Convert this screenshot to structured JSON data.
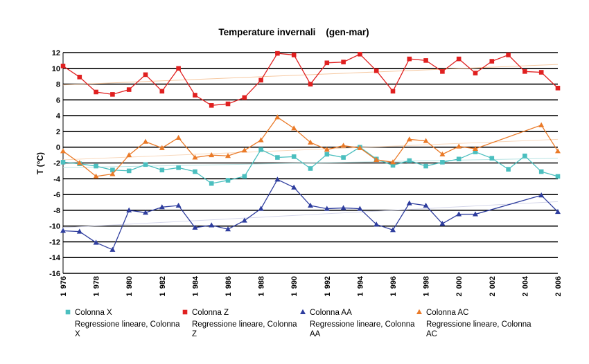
{
  "chart_data": {
    "type": "line",
    "title": "Temperature invernali    (gen-mar)",
    "ylabel": "T (°C)",
    "xlabel": "",
    "ylim": [
      -16,
      12
    ],
    "yticks": [
      12,
      10,
      8,
      6,
      4,
      2,
      0,
      -2,
      -4,
      -6,
      -8,
      -10,
      -12,
      -14,
      -16
    ],
    "xlim": [
      1976,
      2006
    ],
    "xtick_labels": [
      {
        "year": 1976,
        "parts": [
          "1",
          "976"
        ]
      },
      {
        "year": 1978,
        "parts": [
          "1",
          "978"
        ]
      },
      {
        "year": 1980,
        "parts": [
          "1",
          "980"
        ]
      },
      {
        "year": 1982,
        "parts": [
          "1",
          "982"
        ]
      },
      {
        "year": 1984,
        "parts": [
          "1",
          "984"
        ]
      },
      {
        "year": 1986,
        "parts": [
          "1",
          "986"
        ]
      },
      {
        "year": 1988,
        "parts": [
          "1",
          "988"
        ]
      },
      {
        "year": 1990,
        "parts": [
          "1",
          "990"
        ]
      },
      {
        "year": 1992,
        "parts": [
          "1",
          "992"
        ]
      },
      {
        "year": 1994,
        "parts": [
          "1",
          "994"
        ]
      },
      {
        "year": 1996,
        "parts": [
          "1",
          "996"
        ]
      },
      {
        "year": 1998,
        "parts": [
          "1",
          "998"
        ]
      },
      {
        "year": 2000,
        "parts": [
          "2",
          "000"
        ]
      },
      {
        "year": 2002,
        "parts": [
          "2",
          "002"
        ]
      },
      {
        "year": 2004,
        "parts": [
          "2",
          "004"
        ]
      },
      {
        "year": 2006,
        "parts": [
          "2",
          "006"
        ]
      }
    ],
    "grid": true,
    "legend_position": "bottom",
    "series": [
      {
        "name": "Colonna X",
        "marker": "square",
        "color": "#4bbfbf",
        "x": [
          1976,
          1977,
          1978,
          1979,
          1980,
          1981,
          1982,
          1983,
          1984,
          1985,
          1986,
          1987,
          1988,
          1989,
          1990,
          1991,
          1992,
          1993,
          1994,
          1995,
          1996,
          1997,
          1998,
          1999,
          2000,
          2001,
          2002,
          2003,
          2004,
          2005,
          2006
        ],
        "values": [
          -1.9,
          -2.1,
          -2.4,
          -2.9,
          -3.0,
          -2.2,
          -2.9,
          -2.6,
          -3.1,
          -4.6,
          -4.2,
          -3.7,
          -0.3,
          -1.3,
          -1.2,
          -2.7,
          -0.9,
          -1.3,
          0.0,
          -1.5,
          -2.3,
          -1.7,
          -2.4,
          -1.9,
          -1.5,
          -0.6,
          -1.4,
          -2.8,
          -1.1,
          -3.1,
          -3.7
        ]
      },
      {
        "name": "Colonna Z",
        "marker": "square",
        "color": "#e02020",
        "x": [
          1976,
          1977,
          1978,
          1979,
          1980,
          1981,
          1982,
          1983,
          1984,
          1985,
          1986,
          1987,
          1988,
          1989,
          1990,
          1991,
          1992,
          1993,
          1994,
          1995,
          1996,
          1997,
          1998,
          1999,
          2000,
          2001,
          2002,
          2003,
          2004,
          2005,
          2006
        ],
        "values": [
          10.3,
          8.9,
          7.0,
          6.7,
          7.3,
          9.2,
          7.1,
          10.0,
          6.6,
          5.3,
          5.5,
          6.3,
          8.5,
          11.9,
          11.7,
          8.0,
          10.7,
          10.8,
          11.8,
          9.7,
          7.1,
          11.2,
          11.0,
          9.6,
          11.2,
          9.4,
          10.9,
          11.7,
          9.6,
          9.5,
          7.5
        ]
      },
      {
        "name": "Colonna AA",
        "marker": "triangle",
        "color": "#2e3d9e",
        "x": [
          1976,
          1977,
          1978,
          1979,
          1980,
          1981,
          1982,
          1983,
          1984,
          1985,
          1986,
          1987,
          1988,
          1989,
          1990,
          1991,
          1992,
          1993,
          1994,
          1995,
          1996,
          1997,
          1998,
          1999,
          2000,
          2001,
          2005,
          2006
        ],
        "values": [
          -10.6,
          -10.7,
          -12.1,
          -13.0,
          -8.0,
          -8.3,
          -7.6,
          -7.4,
          -10.2,
          -9.9,
          -10.4,
          -9.3,
          -7.8,
          -4.1,
          -5.1,
          -7.4,
          -7.8,
          -7.7,
          -7.8,
          -9.8,
          -10.5,
          -7.1,
          -7.4,
          -9.7,
          -8.5,
          -8.5,
          -6.1,
          -8.2
        ]
      },
      {
        "name": "Colonna AC",
        "marker": "triangle",
        "color": "#ea7a28",
        "x": [
          1976,
          1977,
          1978,
          1979,
          1980,
          1981,
          1982,
          1983,
          1984,
          1985,
          1986,
          1987,
          1988,
          1989,
          1990,
          1991,
          1992,
          1993,
          1994,
          1995,
          1996,
          1997,
          1998,
          1999,
          2000,
          2001,
          2005,
          2006
        ],
        "values": [
          -0.5,
          -2.0,
          -3.7,
          -3.4,
          -1.0,
          0.7,
          -0.1,
          1.2,
          -1.3,
          -1.0,
          -1.1,
          -0.4,
          0.9,
          3.8,
          2.4,
          0.6,
          -0.3,
          0.2,
          -0.1,
          -1.6,
          -1.9,
          1.0,
          0.8,
          -0.9,
          0.1,
          -0.2,
          2.8,
          -0.5
        ]
      }
    ],
    "trendlines": [
      {
        "name": "Regressione lineare, Colonna X",
        "color": "#b8e3e3",
        "x": [
          1976,
          2006
        ],
        "values": [
          -2.6,
          -1.4
        ]
      },
      {
        "name": "Regressione lineare, Colonna Z",
        "color": "#f6c8a0",
        "x": [
          1976,
          2006
        ],
        "values": [
          7.9,
          10.5
        ]
      },
      {
        "name": "Regressione lineare, Colonna AA",
        "color": "#d4d6ea",
        "x": [
          1976,
          2006
        ],
        "values": [
          -10.2,
          -6.9
        ]
      },
      {
        "name": "Regressione lineare, Colonna AC",
        "color": "#f8d8bc",
        "x": [
          1976,
          2006
        ],
        "values": [
          -1.6,
          1.0
        ]
      }
    ]
  }
}
